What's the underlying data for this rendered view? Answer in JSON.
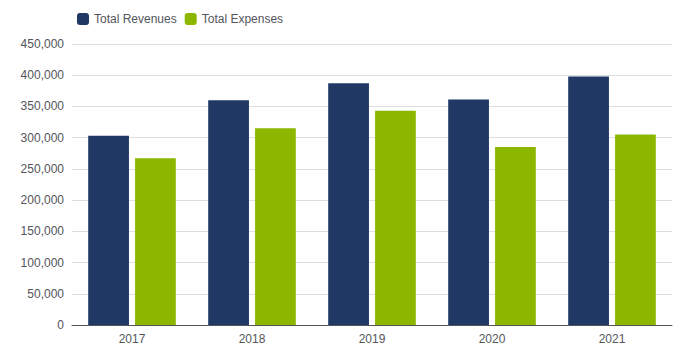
{
  "chart_data": {
    "type": "bar",
    "categories": [
      "2017",
      "2018",
      "2019",
      "2020",
      "2021"
    ],
    "series": [
      {
        "name": "Total Revenues",
        "color": "#1f3864",
        "values": [
          303000,
          360000,
          387000,
          361000,
          398000
        ]
      },
      {
        "name": "Total Expenses",
        "color": "#8db600",
        "values": [
          267000,
          315000,
          343000,
          285000,
          305000
        ]
      }
    ],
    "ylim": [
      0,
      450000
    ],
    "yticks": [
      0,
      {
        "value": 50000,
        "label": "50,000"
      },
      {
        "value": 100000,
        "label": "100,000"
      },
      {
        "value": 150000,
        "label": "150,000"
      },
      {
        "value": 200000,
        "label": "200,000"
      },
      {
        "value": 250000,
        "label": "250,000"
      },
      {
        "value": 300000,
        "label": "300,000"
      },
      {
        "value": 350000,
        "label": "350,000"
      },
      {
        "value": 400000,
        "label": "400,000"
      },
      {
        "value": 450000,
        "label": "450,000"
      }
    ],
    "grid": true,
    "legend": "upper left"
  }
}
